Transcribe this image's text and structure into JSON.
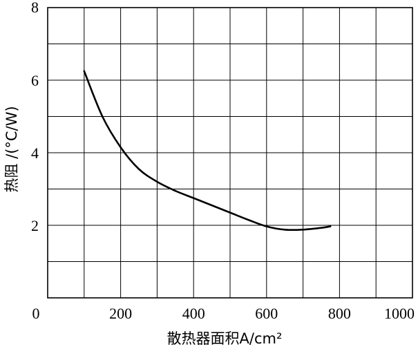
{
  "chart_data": {
    "type": "line",
    "xlabel": "散热器面积A/cm²",
    "ylabel": "热阻 /(°C/W)",
    "xlim": [
      0,
      1000
    ],
    "ylim": [
      0,
      8
    ],
    "x_ticks": [
      "0",
      "200",
      "400",
      "600",
      "800",
      "1000"
    ],
    "y_ticks": [
      "2",
      "4",
      "6",
      "8"
    ],
    "grid": true,
    "series": [
      {
        "x": [
          100,
          150,
          200,
          250,
          300,
          350,
          400,
          450,
          500,
          550,
          600,
          650,
          700,
          750,
          775
        ],
        "y": [
          6.25,
          5.0,
          4.15,
          3.55,
          3.2,
          2.95,
          2.75,
          2.55,
          2.35,
          2.15,
          1.97,
          1.88,
          1.88,
          1.93,
          1.97
        ]
      }
    ]
  }
}
